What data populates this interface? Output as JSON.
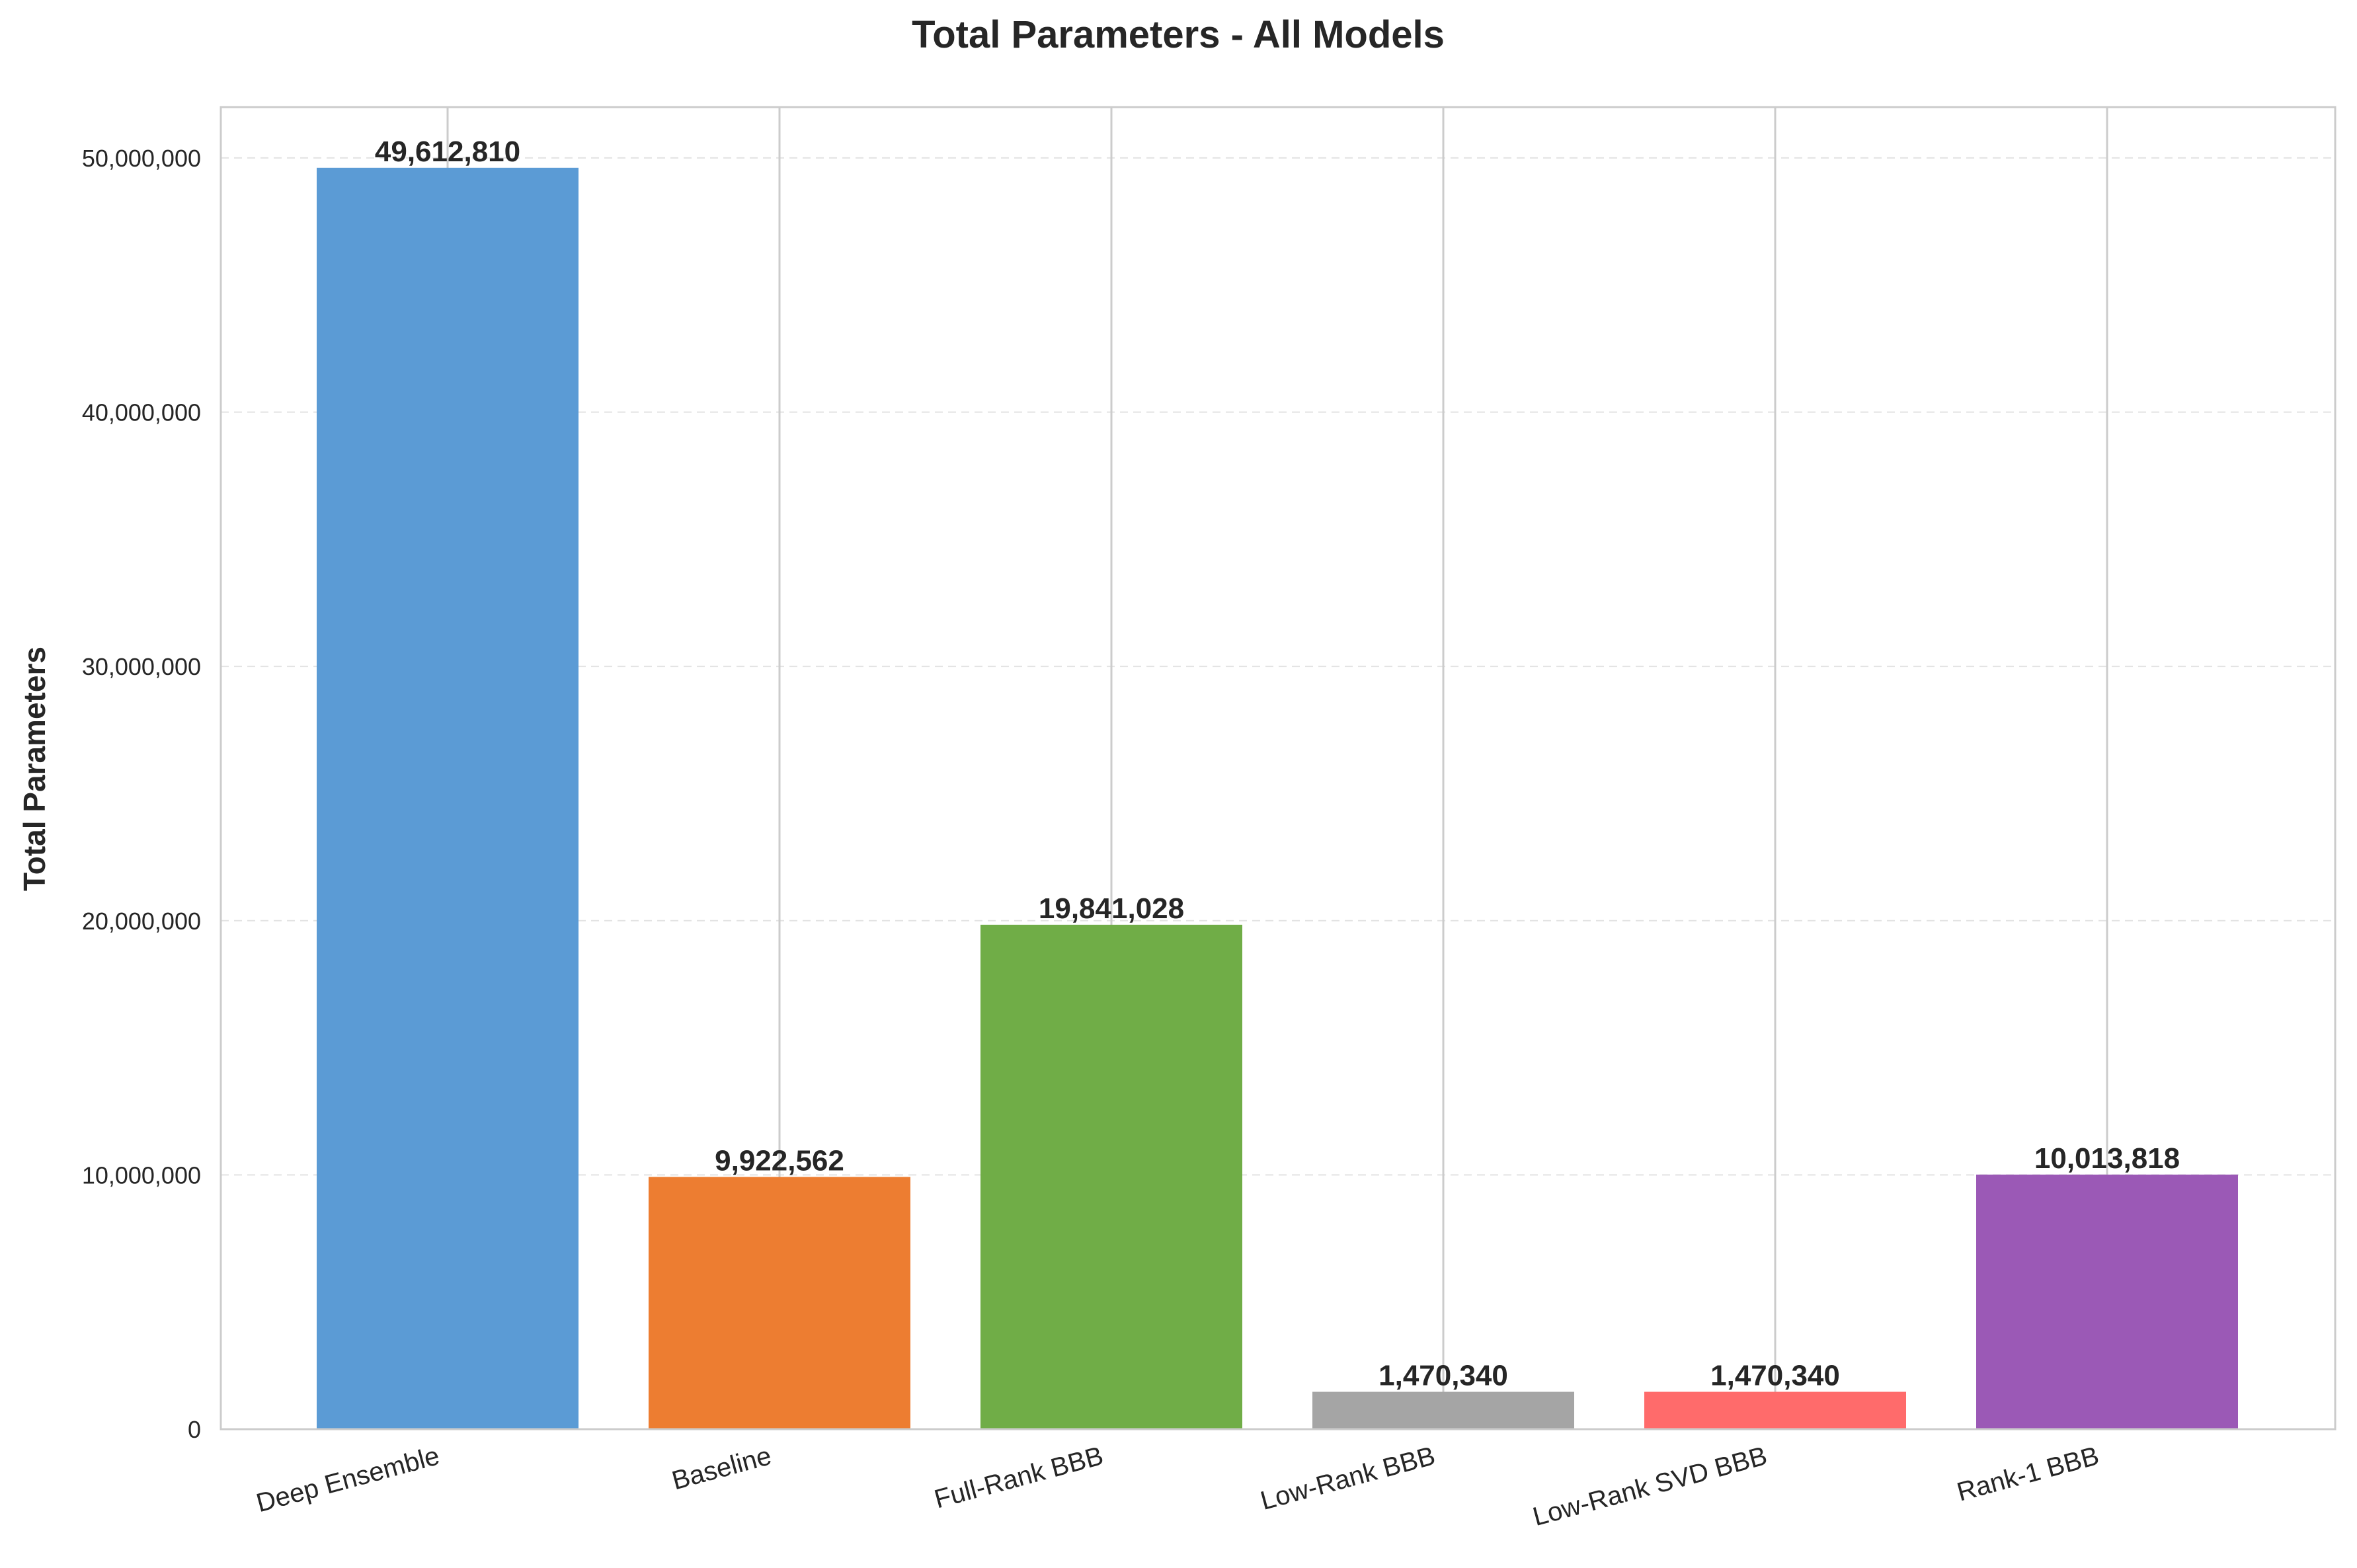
{
  "chart_data": {
    "type": "bar",
    "title": "Total Parameters - All Models",
    "xlabel": "",
    "ylabel": "Total Parameters",
    "categories": [
      "Deep Ensemble",
      "Baseline",
      "Full-Rank BBB",
      "Low-Rank BBB",
      "Low-Rank SVD BBB",
      "Rank-1 BBB"
    ],
    "values": [
      49612810,
      9922562,
      19841028,
      1470340,
      1470340,
      10013818
    ],
    "value_labels": [
      "49,612,810",
      "9,922,562",
      "19,841,028",
      "1,470,340",
      "1,470,340",
      "10,013,818"
    ],
    "colors": [
      "#5b9bd5",
      "#ed7d31",
      "#70ad47",
      "#a5a5a5",
      "#ff6b6b",
      "#9b59b6"
    ],
    "ylim": [
      0,
      52000000
    ],
    "yticks": [
      0,
      10000000,
      20000000,
      30000000,
      40000000,
      50000000
    ],
    "ytick_labels": [
      "0",
      "10,000,000",
      "20,000,000",
      "30,000,000",
      "40,000,000",
      "50,000,000"
    ],
    "grid": true,
    "legend": "none"
  }
}
